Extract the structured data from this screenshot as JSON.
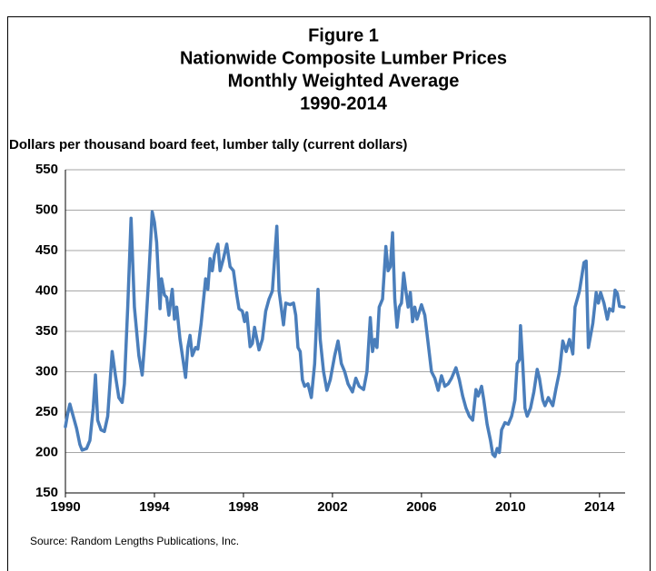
{
  "chart_data": {
    "type": "line",
    "title": [
      "Figure 1",
      "Nationwide Composite Lumber Prices",
      "Monthly Weighted Average",
      "1990-2014"
    ],
    "ylabel": "Dollars per thousand board feet, lumber tally (current dollars)",
    "source": "Source: Random Lengths Publications, Inc.",
    "color": "#4a7ebb",
    "grid": true,
    "xlim": [
      1990,
      2015.15
    ],
    "xticks": [
      1990,
      1994,
      1998,
      2002,
      2006,
      2010,
      2014
    ],
    "ylim": [
      150,
      550
    ],
    "yticks": [
      150,
      200,
      250,
      300,
      350,
      400,
      450,
      500,
      550
    ],
    "x": [
      1990.0,
      1990.1,
      1990.2,
      1990.35,
      1990.5,
      1990.65,
      1990.75,
      1990.95,
      1991.1,
      1991.25,
      1991.35,
      1991.45,
      1991.6,
      1991.75,
      1991.9,
      1992.1,
      1992.25,
      1992.4,
      1992.55,
      1992.65,
      1992.8,
      1992.95,
      1993.1,
      1993.3,
      1993.45,
      1993.6,
      1993.75,
      1993.9,
      1994.0,
      1994.1,
      1994.25,
      1994.32,
      1994.45,
      1994.55,
      1994.65,
      1994.8,
      1994.9,
      1995.0,
      1995.15,
      1995.4,
      1995.5,
      1995.6,
      1995.7,
      1995.85,
      1995.95,
      1996.1,
      1996.3,
      1996.4,
      1996.5,
      1996.6,
      1996.7,
      1996.85,
      1996.95,
      1997.1,
      1997.25,
      1997.4,
      1997.55,
      1997.7,
      1997.8,
      1997.95,
      1998.05,
      1998.15,
      1998.3,
      1998.4,
      1998.5,
      1998.7,
      1998.85,
      1999.0,
      1999.15,
      1999.3,
      1999.5,
      1999.6,
      1999.8,
      1999.9,
      2000.1,
      2000.25,
      2000.35,
      2000.45,
      2000.55,
      2000.65,
      2000.75,
      2000.9,
      2001.05,
      2001.2,
      2001.35,
      2001.45,
      2001.6,
      2001.75,
      2001.9,
      2002.1,
      2002.25,
      2002.4,
      2002.55,
      2002.7,
      2002.9,
      2003.05,
      2003.2,
      2003.4,
      2003.55,
      2003.7,
      2003.8,
      2003.9,
      2004.0,
      2004.1,
      2004.25,
      2004.4,
      2004.5,
      2004.6,
      2004.7,
      2004.8,
      2004.9,
      2005.0,
      2005.1,
      2005.2,
      2005.3,
      2005.4,
      2005.5,
      2005.6,
      2005.7,
      2005.8,
      2006.0,
      2006.15,
      2006.3,
      2006.45,
      2006.6,
      2006.75,
      2006.9,
      2007.05,
      2007.2,
      2007.35,
      2007.55,
      2007.7,
      2007.85,
      2008.0,
      2008.15,
      2008.3,
      2008.45,
      2008.55,
      2008.7,
      2008.8,
      2008.95,
      2009.1,
      2009.2,
      2009.3,
      2009.4,
      2009.5,
      2009.6,
      2009.75,
      2009.9,
      2010.05,
      2010.2,
      2010.3,
      2010.4,
      2010.45,
      2010.55,
      2010.65,
      2010.75,
      2010.9,
      2011.05,
      2011.2,
      2011.3,
      2011.45,
      2011.55,
      2011.7,
      2011.9,
      2012.05,
      2012.2,
      2012.35,
      2012.5,
      2012.65,
      2012.8,
      2012.9,
      2013.1,
      2013.3,
      2013.4,
      2013.5,
      2013.7,
      2013.85,
      2013.95,
      2014.05,
      2014.2,
      2014.35,
      2014.45,
      2014.6,
      2014.7,
      2014.8,
      2014.9,
      2015.1
    ],
    "values": [
      232,
      248,
      260,
      245,
      230,
      210,
      203,
      205,
      215,
      255,
      296,
      240,
      228,
      226,
      245,
      325,
      295,
      268,
      262,
      285,
      380,
      490,
      380,
      320,
      296,
      350,
      420,
      498,
      485,
      460,
      378,
      415,
      395,
      392,
      370,
      402,
      365,
      380,
      340,
      293,
      330,
      345,
      320,
      330,
      328,
      360,
      415,
      402,
      440,
      425,
      445,
      458,
      425,
      440,
      458,
      430,
      425,
      395,
      378,
      375,
      362,
      373,
      331,
      335,
      355,
      327,
      340,
      375,
      390,
      400,
      480,
      400,
      358,
      385,
      383,
      385,
      370,
      330,
      325,
      290,
      282,
      285,
      268,
      310,
      402,
      340,
      300,
      277,
      290,
      320,
      338,
      310,
      300,
      285,
      275,
      292,
      282,
      278,
      300,
      367,
      325,
      340,
      330,
      380,
      390,
      455,
      425,
      430,
      472,
      390,
      355,
      380,
      385,
      422,
      400,
      380,
      398,
      362,
      380,
      365,
      383,
      370,
      335,
      300,
      292,
      277,
      295,
      282,
      285,
      292,
      305,
      290,
      270,
      255,
      245,
      240,
      278,
      270,
      282,
      265,
      235,
      215,
      198,
      195,
      205,
      200,
      228,
      237,
      235,
      245,
      265,
      310,
      315,
      357,
      310,
      255,
      245,
      255,
      275,
      303,
      292,
      265,
      258,
      268,
      258,
      280,
      300,
      338,
      325,
      340,
      322,
      380,
      400,
      435,
      437,
      330,
      360,
      398,
      385,
      398,
      385,
      365,
      378,
      375,
      401,
      397,
      381,
      380
    ]
  }
}
